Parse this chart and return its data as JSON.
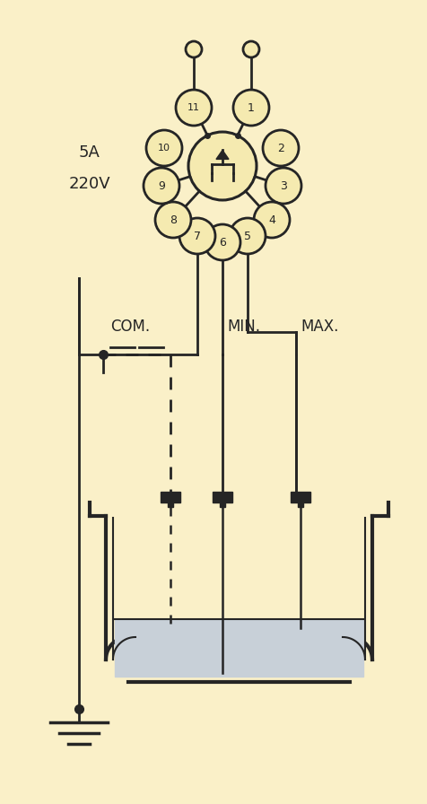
{
  "bg_color": "#FAF0C8",
  "line_color": "#252525",
  "circle_fill": "#F5EAB0",
  "water_fill": "#C8D0D8",
  "figsize": [
    4.77,
    8.96
  ],
  "dpi": 100,
  "label_5A": "5A",
  "label_220V": "220V",
  "label_com": "COM.",
  "label_min": "MIN.",
  "label_max": "MAX."
}
